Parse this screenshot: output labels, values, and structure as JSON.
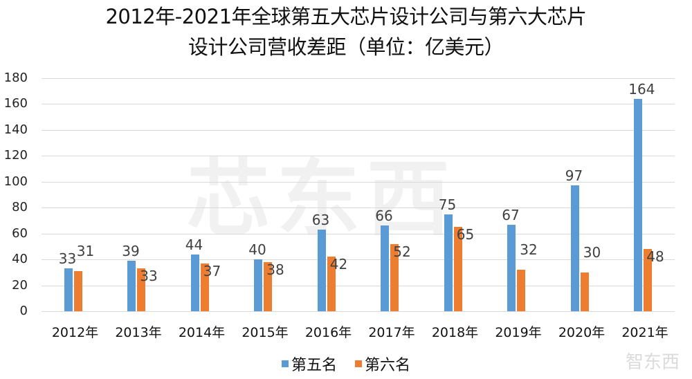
{
  "chart_data": {
    "type": "bar",
    "title": "2012年-2021年全球第五大芯片设计公司与第六大芯片设计公司营收差距（单位：亿美元）",
    "title_lines": [
      "2012年-2021年全球第五大芯片设计公司与第六大芯片",
      "设计公司营收差距（单位：亿美元）"
    ],
    "xlabel": "",
    "ylabel": "",
    "categories": [
      "2012年",
      "2013年",
      "2014年",
      "2015年",
      "2016年",
      "2017年",
      "2018年",
      "2019年",
      "2020年",
      "2021年"
    ],
    "series": [
      {
        "name": "第五名",
        "color": "#5b9bd5",
        "values": [
          33,
          39,
          44,
          40,
          63,
          66,
          75,
          67,
          97,
          164
        ]
      },
      {
        "name": "第六名",
        "color": "#ed7d31",
        "values": [
          31,
          33,
          37,
          38,
          42,
          52,
          65,
          32,
          30,
          48
        ]
      }
    ],
    "ylim": [
      0,
      180
    ],
    "yticks": [
      0,
      20,
      40,
      60,
      80,
      100,
      120,
      140,
      160,
      180
    ],
    "grid": true,
    "legend_position": "bottom"
  },
  "watermark": {
    "center": "芯东西",
    "corner": "智东西"
  }
}
